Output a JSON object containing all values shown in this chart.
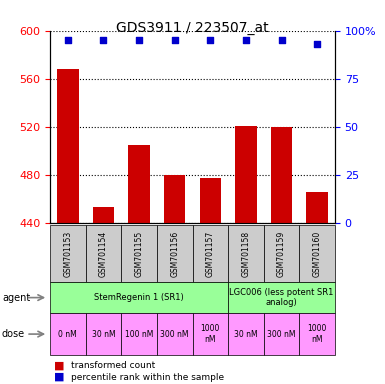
{
  "title": "GDS3911 / 223507_at",
  "samples": [
    "GSM701153",
    "GSM701154",
    "GSM701155",
    "GSM701156",
    "GSM701157",
    "GSM701158",
    "GSM701159",
    "GSM701160"
  ],
  "bar_values": [
    568,
    453,
    505,
    480,
    477,
    521,
    520,
    466
  ],
  "percentile_values": [
    95,
    95,
    95,
    95,
    95,
    95,
    95,
    93
  ],
  "ylim_left": [
    440,
    600
  ],
  "ylim_right": [
    0,
    100
  ],
  "yticks_left": [
    440,
    480,
    520,
    560,
    600
  ],
  "yticks_right": [
    0,
    25,
    50,
    75,
    100
  ],
  "bar_color": "#cc0000",
  "dot_color": "#0000cc",
  "agent_configs": [
    {
      "start": 0,
      "end": 5,
      "label": "StemRegenin 1 (SR1)",
      "color": "#99ff99"
    },
    {
      "start": 5,
      "end": 8,
      "label": "LGC006 (less potent SR1\nanalog)",
      "color": "#99ff99"
    }
  ],
  "dose_labels": [
    "0 nM",
    "30 nM",
    "100 nM",
    "300 nM",
    "1000\nnM",
    "30 nM",
    "300 nM",
    "1000\nnM"
  ],
  "dose_color": "#ff99ff",
  "sample_bg_color": "#cccccc",
  "agent_label": "agent",
  "dose_label": "dose",
  "legend_bar_label": "transformed count",
  "legend_dot_label": "percentile rank within the sample",
  "background_color": "#ffffff"
}
